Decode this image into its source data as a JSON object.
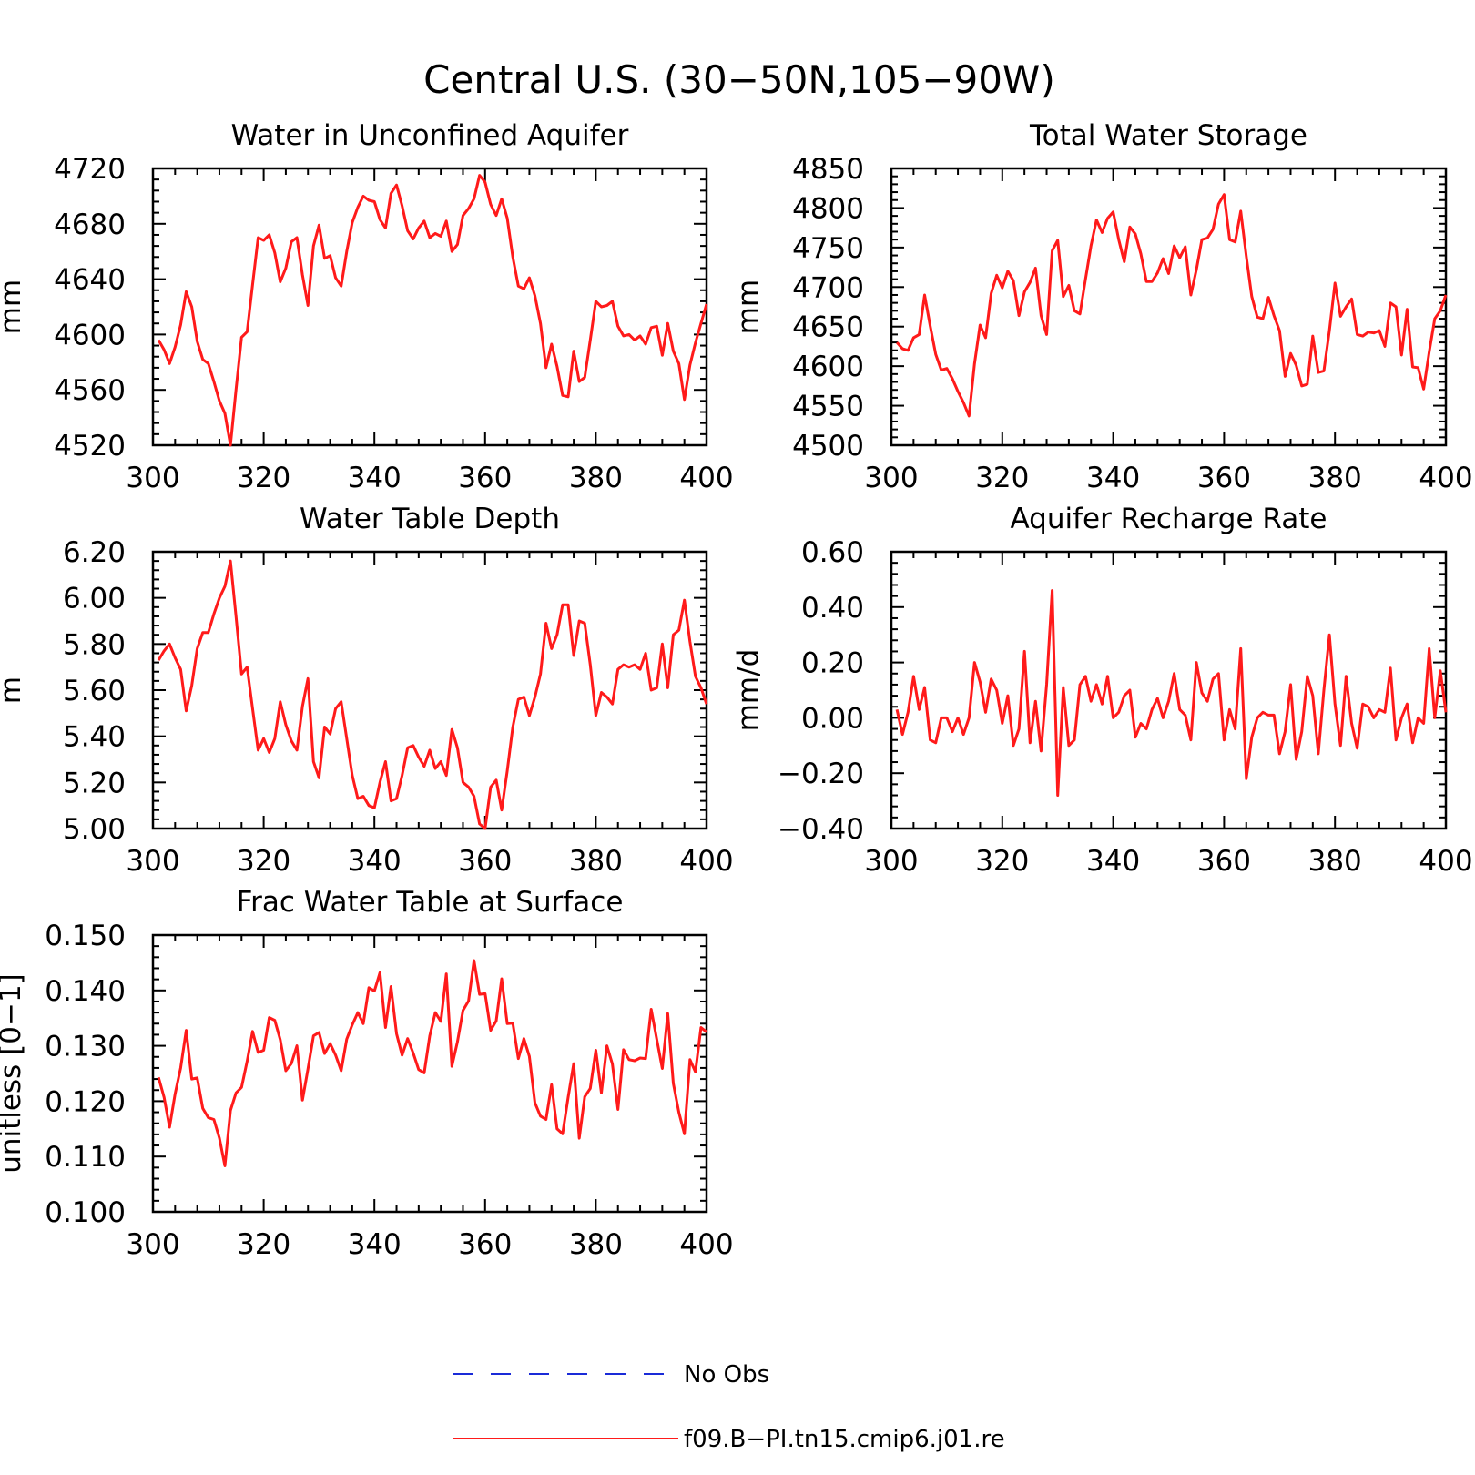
{
  "figure": {
    "title": "Central U.S. (30−50N,105−90W)"
  },
  "legend": {
    "entries": [
      {
        "label": "No Obs",
        "color": "#1a2bd8",
        "style": "dashed"
      },
      {
        "label": "f09.B−PI.tn15.cmip6.j01.re",
        "color": "#ff1a1a",
        "style": "solid"
      }
    ]
  },
  "chart_data": [
    {
      "type": "line",
      "title": "Water in Unconfined Aquifer",
      "ylabel": "mm",
      "xlim": [
        300,
        400
      ],
      "ylim": [
        4520,
        4720
      ],
      "xticks": [
        300,
        320,
        340,
        360,
        380,
        400
      ],
      "xtick_labels": [
        "300",
        "320",
        "340",
        "360",
        "380",
        "400"
      ],
      "yticks": [
        4520,
        4560,
        4600,
        4640,
        4680,
        4720
      ],
      "ytick_labels": [
        "4520",
        "4560",
        "4600",
        "4640",
        "4680",
        "4720"
      ],
      "series": [
        {
          "color": "#ff1a1a",
          "x_start": 301,
          "x_step": 1,
          "values": [
            4596,
            4589,
            4579,
            4591,
            4607,
            4631,
            4620,
            4595,
            4582,
            4579,
            4566,
            4552,
            4543,
            4520,
            4560,
            4598,
            4602,
            4636,
            4670,
            4668,
            4672,
            4659,
            4638,
            4648,
            4667,
            4670,
            4643,
            4621,
            4664,
            4679,
            4655,
            4657,
            4641,
            4635,
            4660,
            4681,
            4692,
            4700,
            4697,
            4696,
            4683,
            4677,
            4702,
            4708,
            4693,
            4675,
            4669,
            4677,
            4682,
            4670,
            4673,
            4671,
            4682,
            4660,
            4665,
            4686,
            4691,
            4698,
            4715,
            4710,
            4694,
            4686,
            4698,
            4684,
            4656,
            4635,
            4633,
            4641,
            4628,
            4608,
            4576,
            4593,
            4577,
            4556,
            4555,
            4588,
            4566,
            4569,
            4596,
            4624,
            4620,
            4621,
            4624,
            4606,
            4599,
            4600,
            4596,
            4599,
            4593,
            4605,
            4606,
            4585,
            4608,
            4588,
            4579,
            4553,
            4578,
            4594,
            4608,
            4622
          ]
        }
      ]
    },
    {
      "type": "line",
      "title": "Total Water Storage",
      "ylabel": "mm",
      "xlim": [
        300,
        400
      ],
      "ylim": [
        4500,
        4850
      ],
      "xticks": [
        300,
        320,
        340,
        360,
        380,
        400
      ],
      "xtick_labels": [
        "300",
        "320",
        "340",
        "360",
        "380",
        "400"
      ],
      "yticks": [
        4500,
        4550,
        4600,
        4650,
        4700,
        4750,
        4800,
        4850
      ],
      "ytick_labels": [
        "4500",
        "4550",
        "4600",
        "4650",
        "4700",
        "4750",
        "4800",
        "4850"
      ],
      "series": [
        {
          "color": "#ff1a1a",
          "x_start": 301,
          "x_step": 1,
          "values": [
            4630,
            4622,
            4620,
            4636,
            4640,
            4690,
            4651,
            4615,
            4595,
            4597,
            4584,
            4568,
            4554,
            4537,
            4603,
            4652,
            4636,
            4692,
            4715,
            4699,
            4720,
            4708,
            4664,
            4694,
            4706,
            4724,
            4664,
            4640,
            4746,
            4759,
            4688,
            4702,
            4670,
            4666,
            4710,
            4752,
            4785,
            4769,
            4787,
            4795,
            4760,
            4732,
            4776,
            4767,
            4742,
            4707,
            4707,
            4718,
            4736,
            4717,
            4752,
            4737,
            4751,
            4690,
            4722,
            4760,
            4762,
            4773,
            4805,
            4817,
            4760,
            4757,
            4796,
            4739,
            4688,
            4662,
            4660,
            4687,
            4664,
            4645,
            4587,
            4616,
            4601,
            4575,
            4577,
            4638,
            4592,
            4594,
            4645,
            4705,
            4663,
            4675,
            4685,
            4640,
            4638,
            4643,
            4642,
            4645,
            4625,
            4680,
            4675,
            4614,
            4672,
            4599,
            4598,
            4571,
            4618,
            4660,
            4670,
            4690
          ]
        }
      ]
    },
    {
      "type": "line",
      "title": "Water Table Depth",
      "ylabel": "m",
      "xlim": [
        300,
        400
      ],
      "ylim": [
        5.0,
        6.2
      ],
      "xticks": [
        300,
        320,
        340,
        360,
        380,
        400
      ],
      "xtick_labels": [
        "300",
        "320",
        "340",
        "360",
        "380",
        "400"
      ],
      "yticks": [
        5.0,
        5.2,
        5.4,
        5.6,
        5.8,
        6.0,
        6.2
      ],
      "ytick_labels": [
        "5.00",
        "5.20",
        "5.40",
        "5.60",
        "5.80",
        "6.00",
        "6.20"
      ],
      "series": [
        {
          "color": "#ff1a1a",
          "x_start": 301,
          "x_step": 1,
          "values": [
            5.73,
            5.77,
            5.8,
            5.74,
            5.69,
            5.51,
            5.62,
            5.78,
            5.85,
            5.85,
            5.93,
            6.0,
            6.05,
            6.16,
            5.92,
            5.67,
            5.7,
            5.52,
            5.34,
            5.39,
            5.33,
            5.39,
            5.55,
            5.45,
            5.38,
            5.34,
            5.53,
            5.65,
            5.29,
            5.22,
            5.44,
            5.41,
            5.52,
            5.55,
            5.39,
            5.23,
            5.13,
            5.14,
            5.1,
            5.09,
            5.2,
            5.29,
            5.12,
            5.13,
            5.23,
            5.35,
            5.36,
            5.31,
            5.27,
            5.34,
            5.26,
            5.29,
            5.23,
            5.43,
            5.35,
            5.2,
            5.18,
            5.14,
            5.02,
            5.0,
            5.18,
            5.21,
            5.08,
            5.25,
            5.44,
            5.56,
            5.57,
            5.49,
            5.57,
            5.67,
            5.89,
            5.78,
            5.84,
            5.97,
            5.97,
            5.75,
            5.9,
            5.89,
            5.71,
            5.49,
            5.59,
            5.57,
            5.54,
            5.69,
            5.71,
            5.7,
            5.71,
            5.69,
            5.76,
            5.6,
            5.61,
            5.8,
            5.61,
            5.84,
            5.86,
            5.99,
            5.81,
            5.66,
            5.61,
            5.54
          ]
        }
      ]
    },
    {
      "type": "line",
      "title": "Aquifer Recharge Rate",
      "ylabel": "mm/d",
      "xlim": [
        300,
        400
      ],
      "ylim": [
        -0.4,
        0.6
      ],
      "xticks": [
        300,
        320,
        340,
        360,
        380,
        400
      ],
      "xtick_labels": [
        "300",
        "320",
        "340",
        "360",
        "380",
        "400"
      ],
      "yticks": [
        -0.4,
        -0.2,
        0.0,
        0.2,
        0.4,
        0.6
      ],
      "ytick_labels": [
        "−0.40",
        "−0.20",
        "0.00",
        "0.20",
        "0.40",
        "0.60"
      ],
      "series": [
        {
          "color": "#ff1a1a",
          "x_start": 301,
          "x_step": 1,
          "values": [
            0.03,
            -0.06,
            0.02,
            0.15,
            0.03,
            0.11,
            -0.08,
            -0.09,
            0.0,
            0.0,
            -0.05,
            0.0,
            -0.06,
            0.0,
            0.2,
            0.13,
            0.02,
            0.14,
            0.1,
            -0.02,
            0.08,
            -0.1,
            -0.04,
            0.24,
            -0.09,
            0.06,
            -0.12,
            0.12,
            0.46,
            -0.28,
            0.11,
            -0.1,
            -0.08,
            0.12,
            0.15,
            0.06,
            0.12,
            0.05,
            0.15,
            0.0,
            0.02,
            0.08,
            0.1,
            -0.07,
            -0.02,
            -0.04,
            0.03,
            0.07,
            0.0,
            0.06,
            0.16,
            0.03,
            0.01,
            -0.08,
            0.2,
            0.09,
            0.06,
            0.14,
            0.16,
            -0.08,
            0.03,
            -0.04,
            0.25,
            -0.22,
            -0.07,
            0.0,
            0.02,
            0.01,
            0.01,
            -0.13,
            -0.05,
            0.12,
            -0.15,
            -0.05,
            0.15,
            0.08,
            -0.13,
            0.1,
            0.3,
            0.05,
            -0.1,
            0.15,
            -0.02,
            -0.11,
            0.05,
            0.04,
            0.0,
            0.03,
            0.02,
            0.18,
            -0.08,
            0.0,
            0.05,
            -0.09,
            0.0,
            -0.02,
            0.25,
            0.0,
            0.17,
            0.02
          ]
        }
      ]
    },
    {
      "type": "line",
      "title": "Frac Water Table at Surface",
      "ylabel": "unitless [0−1]",
      "xlim": [
        300,
        400
      ],
      "ylim": [
        0.1,
        0.15
      ],
      "xticks": [
        300,
        320,
        340,
        360,
        380,
        400
      ],
      "xtick_labels": [
        "300",
        "320",
        "340",
        "360",
        "380",
        "400"
      ],
      "yticks": [
        0.1,
        0.11,
        0.12,
        0.13,
        0.14,
        0.15
      ],
      "ytick_labels": [
        "0.100",
        "0.110",
        "0.120",
        "0.130",
        "0.140",
        "0.150"
      ],
      "series": [
        {
          "color": "#ff1a1a",
          "x_start": 301,
          "x_step": 1,
          "values": [
            0.1243,
            0.1207,
            0.1153,
            0.1213,
            0.126,
            0.1328,
            0.124,
            0.1242,
            0.1187,
            0.117,
            0.1167,
            0.1133,
            0.1083,
            0.1183,
            0.1215,
            0.1225,
            0.1272,
            0.1326,
            0.1288,
            0.1292,
            0.1351,
            0.1346,
            0.1311,
            0.1255,
            0.1268,
            0.13,
            0.1202,
            0.1258,
            0.1318,
            0.1324,
            0.1286,
            0.1304,
            0.1283,
            0.1255,
            0.1312,
            0.1338,
            0.136,
            0.134,
            0.1405,
            0.1399,
            0.1432,
            0.1333,
            0.1407,
            0.1322,
            0.1283,
            0.1313,
            0.1287,
            0.1257,
            0.1251,
            0.1318,
            0.136,
            0.1344,
            0.143,
            0.1263,
            0.1307,
            0.1364,
            0.1381,
            0.1454,
            0.1393,
            0.1394,
            0.1328,
            0.1345,
            0.1421,
            0.134,
            0.1341,
            0.1277,
            0.1313,
            0.1281,
            0.1197,
            0.1173,
            0.1167,
            0.123,
            0.115,
            0.1141,
            0.1207,
            0.1268,
            0.1133,
            0.1208,
            0.1223,
            0.1292,
            0.1215,
            0.13,
            0.1267,
            0.1185,
            0.1293,
            0.1275,
            0.1273,
            0.1278,
            0.1277,
            0.1366,
            0.1312,
            0.1259,
            0.1358,
            0.1232,
            0.118,
            0.1141,
            0.1275,
            0.1253,
            0.1333,
            0.1325
          ]
        }
      ]
    }
  ]
}
